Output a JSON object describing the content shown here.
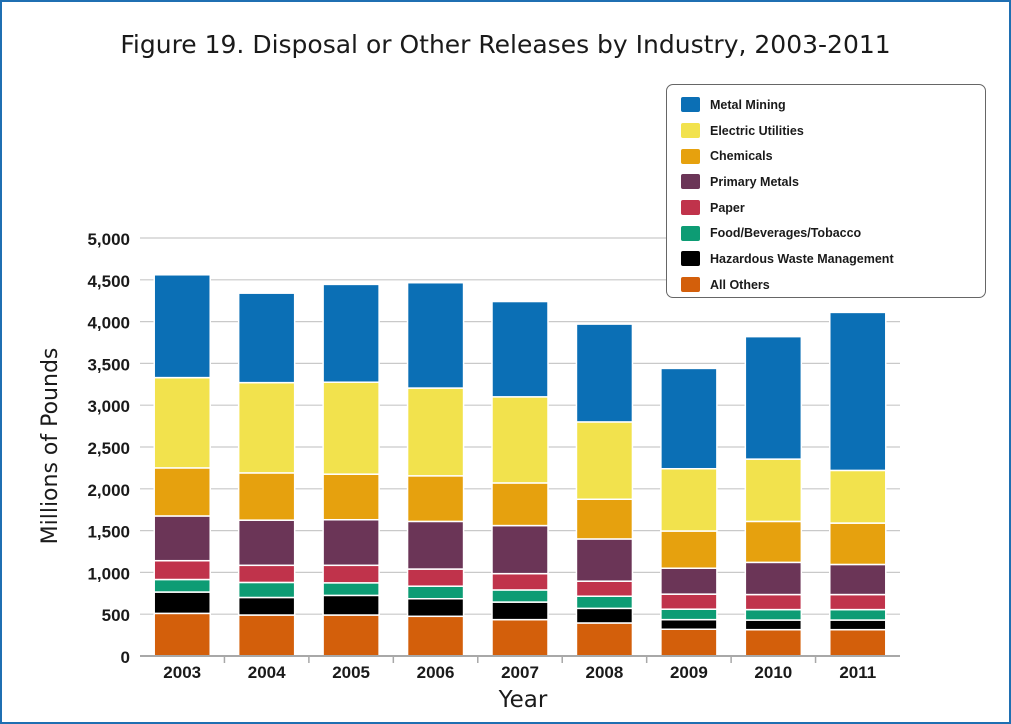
{
  "chart_data": {
    "type": "bar",
    "stacked": true,
    "title": "Figure 19. Disposal or Other Releases by Industry, 2003-2011",
    "xlabel": "Year",
    "ylabel": "Millions of Pounds",
    "ylim": [
      0,
      5000
    ],
    "yticks": [
      0,
      500,
      1000,
      1500,
      2000,
      2500,
      3000,
      3500,
      4000,
      4500,
      5000
    ],
    "ytick_labels": [
      "0",
      "500",
      "1,000",
      "1,500",
      "2,000",
      "2,500",
      "3,000",
      "3,500",
      "4,000",
      "4,500",
      "5,000"
    ],
    "grid": true,
    "legend_position": "top-right",
    "categories": [
      "2003",
      "2004",
      "2005",
      "2006",
      "2007",
      "2008",
      "2009",
      "2010",
      "2011"
    ],
    "series": [
      {
        "name": "All Others",
        "color": "#d35f0b",
        "values": [
          510,
          490,
          490,
          475,
          435,
          395,
          320,
          315,
          315
        ]
      },
      {
        "name": "Hazardous Waste Management",
        "color": "#000000",
        "values": [
          255,
          210,
          235,
          210,
          210,
          175,
          115,
          115,
          115
        ]
      },
      {
        "name": "Food/Beverages/Tobacco",
        "color": "#0d9c74",
        "values": [
          150,
          180,
          150,
          150,
          145,
          145,
          125,
          125,
          125
        ]
      },
      {
        "name": "Paper",
        "color": "#c0334b",
        "values": [
          225,
          205,
          210,
          205,
          195,
          180,
          180,
          180,
          180
        ]
      },
      {
        "name": "Primary Metals",
        "color": "#6b3557",
        "values": [
          535,
          540,
          545,
          570,
          575,
          505,
          310,
          385,
          360
        ]
      },
      {
        "name": "Chemicals",
        "color": "#e6a10e",
        "values": [
          575,
          565,
          545,
          545,
          510,
          475,
          445,
          490,
          495
        ]
      },
      {
        "name": "Electric Utilities",
        "color": "#f2e24d",
        "values": [
          1080,
          1080,
          1100,
          1050,
          1030,
          925,
          745,
          745,
          630
        ]
      },
      {
        "name": "Metal Mining",
        "color": "#0b6fb5",
        "values": [
          1230,
          1070,
          1170,
          1260,
          1140,
          1170,
          1200,
          1465,
          1890
        ]
      }
    ]
  }
}
